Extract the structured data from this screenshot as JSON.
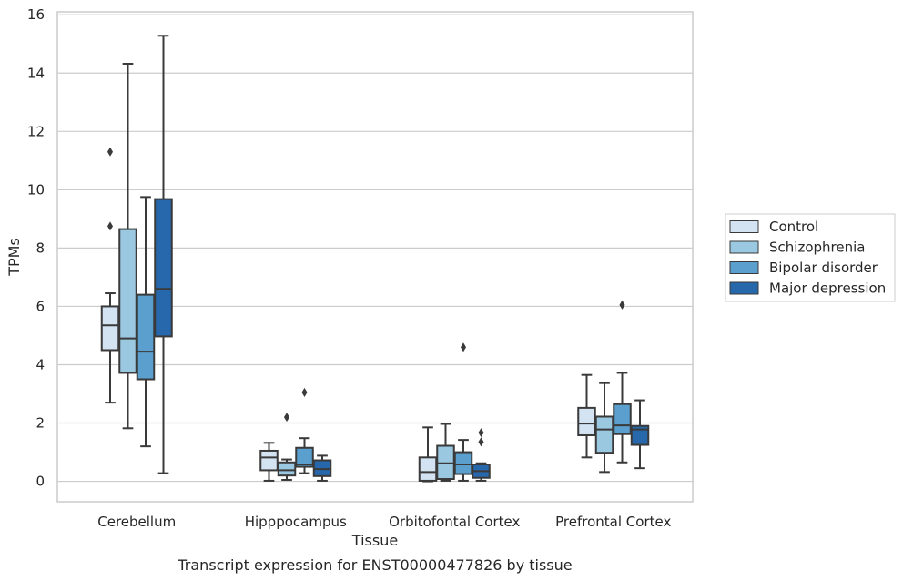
{
  "caption": "Transcript expression for ENST00000477826 by tissue",
  "chart_data": {
    "type": "box",
    "xlabel": "Tissue",
    "ylabel": "TPMs",
    "ylim": [
      -0.7,
      16.1
    ],
    "yticks": [
      0,
      2,
      4,
      6,
      8,
      10,
      12,
      14,
      16
    ],
    "grid": "horizontal",
    "legend_position": "right",
    "categories": [
      "Cerebellum",
      "Hipppocampus",
      "Orbitofontal Cortex",
      "Prefrontal Cortex"
    ],
    "series": [
      {
        "name": "Control",
        "color": "#d4e3f2",
        "boxes": [
          {
            "whisker_low": 2.7,
            "q1": 4.5,
            "median": 5.35,
            "q3": 6.0,
            "whisker_high": 6.45,
            "outliers": [
              8.75,
              11.3
            ]
          },
          {
            "whisker_low": 0.02,
            "q1": 0.38,
            "median": 0.82,
            "q3": 1.05,
            "whisker_high": 1.32,
            "outliers": []
          },
          {
            "whisker_low": 0.0,
            "q1": 0.02,
            "median": 0.32,
            "q3": 0.82,
            "whisker_high": 1.85,
            "outliers": []
          },
          {
            "whisker_low": 0.82,
            "q1": 1.58,
            "median": 1.98,
            "q3": 2.52,
            "whisker_high": 3.65,
            "outliers": []
          }
        ]
      },
      {
        "name": "Schizophrenia",
        "color": "#9ac8e0",
        "boxes": [
          {
            "whisker_low": 1.82,
            "q1": 3.72,
            "median": 4.9,
            "q3": 8.65,
            "whisker_high": 14.32,
            "outliers": []
          },
          {
            "whisker_low": 0.05,
            "q1": 0.2,
            "median": 0.38,
            "q3": 0.65,
            "whisker_high": 0.75,
            "outliers": [
              2.2
            ]
          },
          {
            "whisker_low": 0.02,
            "q1": 0.08,
            "median": 0.62,
            "q3": 1.22,
            "whisker_high": 1.97,
            "outliers": []
          },
          {
            "whisker_low": 0.32,
            "q1": 0.98,
            "median": 1.78,
            "q3": 2.22,
            "whisker_high": 3.37,
            "outliers": []
          }
        ]
      },
      {
        "name": "Bipolar disorder",
        "color": "#5a9fcd",
        "boxes": [
          {
            "whisker_low": 1.2,
            "q1": 3.5,
            "median": 4.45,
            "q3": 6.4,
            "whisker_high": 9.75,
            "outliers": []
          },
          {
            "whisker_low": 0.28,
            "q1": 0.5,
            "median": 0.58,
            "q3": 1.15,
            "whisker_high": 1.48,
            "outliers": [
              3.05
            ]
          },
          {
            "whisker_low": 0.02,
            "q1": 0.25,
            "median": 0.58,
            "q3": 1.0,
            "whisker_high": 1.42,
            "outliers": [
              4.6
            ]
          },
          {
            "whisker_low": 0.65,
            "q1": 1.62,
            "median": 1.92,
            "q3": 2.65,
            "whisker_high": 3.72,
            "outliers": [
              6.05
            ]
          }
        ]
      },
      {
        "name": "Major depression",
        "color": "#2767ab",
        "boxes": [
          {
            "whisker_low": 0.28,
            "q1": 4.97,
            "median": 6.6,
            "q3": 9.68,
            "whisker_high": 15.28,
            "outliers": []
          },
          {
            "whisker_low": 0.02,
            "q1": 0.18,
            "median": 0.42,
            "q3": 0.72,
            "whisker_high": 0.88,
            "outliers": []
          },
          {
            "whisker_low": 0.02,
            "q1": 0.12,
            "median": 0.35,
            "q3": 0.58,
            "whisker_high": 0.62,
            "outliers": [
              1.35,
              1.67
            ]
          },
          {
            "whisker_low": 0.45,
            "q1": 1.25,
            "median": 1.78,
            "q3": 1.9,
            "whisker_high": 2.78,
            "outliers": []
          }
        ]
      }
    ]
  }
}
